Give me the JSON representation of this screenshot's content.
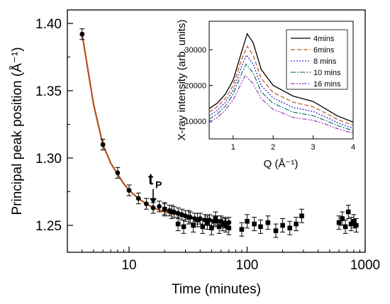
{
  "chart_data": [
    {
      "type": "scatter",
      "xlabel": "Time (minutes)",
      "ylabel": "Principal peak position (Å⁻¹)",
      "xscale": "log",
      "xlim": [
        3,
        1000
      ],
      "ylim": [
        1.23,
        1.41
      ],
      "x_ticks": [
        {
          "value": 10,
          "label": "10"
        },
        {
          "value": 100,
          "label": "100"
        },
        {
          "value": 1000,
          "label": "1000"
        }
      ],
      "y_ticks": [
        {
          "value": 1.25,
          "label": "1.25"
        },
        {
          "value": 1.3,
          "label": "1.30"
        },
        {
          "value": 1.35,
          "label": "1.35"
        },
        {
          "value": 1.4,
          "label": "1.40"
        }
      ],
      "annotation": {
        "text": "t",
        "subscript": "P",
        "x": 16,
        "arrow_from_y": 1.277,
        "arrow_to_y": 1.266
      },
      "series": [
        {
          "marker": "circle",
          "color": "#000000",
          "error_bar": 0.004,
          "points": [
            [
              4,
              1.392
            ],
            [
              6,
              1.31
            ],
            [
              8,
              1.289
            ],
            [
              10,
              1.276
            ],
            [
              12,
              1.27
            ],
            [
              14,
              1.266
            ],
            [
              16,
              1.263
            ],
            [
              18,
              1.264
            ],
            [
              20,
              1.262
            ],
            [
              22,
              1.261
            ],
            [
              24,
              1.26
            ],
            [
              26,
              1.259
            ],
            [
              28,
              1.258
            ],
            [
              30,
              1.257
            ],
            [
              33,
              1.256
            ],
            [
              36,
              1.255
            ],
            [
              40,
              1.255
            ],
            [
              44,
              1.254
            ],
            [
              48,
              1.254
            ],
            [
              52,
              1.253
            ],
            [
              56,
              1.253
            ],
            [
              60,
              1.253
            ],
            [
              65,
              1.252
            ],
            [
              70,
              1.252
            ]
          ]
        },
        {
          "marker": "square",
          "color": "#000000",
          "error_bar": 0.005,
          "points": [
            [
              20,
              1.262
            ],
            [
              23,
              1.26
            ],
            [
              26,
              1.251
            ],
            [
              29,
              1.249
            ],
            [
              32,
              1.256
            ],
            [
              35,
              1.25
            ],
            [
              38,
              1.254
            ],
            [
              42,
              1.249
            ],
            [
              46,
              1.252
            ],
            [
              50,
              1.248
            ],
            [
              54,
              1.255
            ],
            [
              58,
              1.249
            ],
            [
              62,
              1.251
            ],
            [
              66,
              1.25
            ],
            [
              70,
              1.248
            ],
            [
              90,
              1.247
            ],
            [
              100,
              1.253
            ],
            [
              115,
              1.251
            ],
            [
              130,
              1.249
            ],
            [
              150,
              1.252
            ],
            [
              175,
              1.246
            ],
            [
              200,
              1.25
            ],
            [
              230,
              1.248
            ],
            [
              260,
              1.251
            ],
            [
              290,
              1.257
            ],
            [
              600,
              1.252
            ],
            [
              640,
              1.255
            ],
            [
              680,
              1.249
            ],
            [
              720,
              1.26
            ],
            [
              760,
              1.251
            ],
            [
              800,
              1.253
            ],
            [
              840,
              1.25
            ]
          ]
        }
      ],
      "fit_line": {
        "color": "#b44f1e",
        "points": [
          [
            4,
            1.392
          ],
          [
            5,
            1.34
          ],
          [
            6,
            1.31
          ],
          [
            7,
            1.296
          ],
          [
            8,
            1.288
          ],
          [
            9,
            1.281
          ],
          [
            10,
            1.276
          ],
          [
            12,
            1.27
          ],
          [
            14,
            1.266
          ],
          [
            16,
            1.263
          ],
          [
            20,
            1.26
          ],
          [
            25,
            1.258
          ],
          [
            30,
            1.256
          ],
          [
            40,
            1.255
          ],
          [
            50,
            1.254
          ],
          [
            60,
            1.253
          ],
          [
            70,
            1.252
          ]
        ]
      }
    },
    {
      "type": "line",
      "xlabel": "Q (Å⁻¹)",
      "ylabel": "X-ray intensity (arb. units)",
      "xlim": [
        0.4,
        4
      ],
      "ylim": [
        5000,
        38000
      ],
      "x_ticks": [
        {
          "value": 1,
          "label": "1"
        },
        {
          "value": 2,
          "label": "2"
        },
        {
          "value": 3,
          "label": "3"
        },
        {
          "value": 4,
          "label": "4"
        }
      ],
      "y_ticks": [
        {
          "value": 10000,
          "label": "10000"
        },
        {
          "value": 20000,
          "label": "20000"
        },
        {
          "value": 30000,
          "label": "30000"
        }
      ],
      "legend_position": "top-right",
      "series": [
        {
          "name": "4mins",
          "color": "#000000",
          "dash": "solid",
          "points": [
            [
              0.4,
              13500
            ],
            [
              0.6,
              15000
            ],
            [
              0.8,
              17500
            ],
            [
              1.0,
              21500
            ],
            [
              1.2,
              29000
            ],
            [
              1.35,
              34500
            ],
            [
              1.5,
              32000
            ],
            [
              1.7,
              24500
            ],
            [
              2.0,
              20000
            ],
            [
              2.5,
              17000
            ],
            [
              3.0,
              15500
            ],
            [
              3.3,
              13500
            ],
            [
              3.6,
              11500
            ],
            [
              4.0,
              9700
            ]
          ]
        },
        {
          "name": "6mins",
          "color": "#c05f2a",
          "dash": "6,3",
          "points": [
            [
              0.4,
              12500
            ],
            [
              0.6,
              14000
            ],
            [
              0.8,
              16300
            ],
            [
              1.0,
              20000
            ],
            [
              1.2,
              27000
            ],
            [
              1.35,
              31000
            ],
            [
              1.5,
              28500
            ],
            [
              1.7,
              22000
            ],
            [
              2.0,
              18000
            ],
            [
              2.5,
              15300
            ],
            [
              3.0,
              14000
            ],
            [
              3.3,
              12300
            ],
            [
              3.6,
              10500
            ],
            [
              4.0,
              8800
            ]
          ]
        },
        {
          "name": "8 mins",
          "color": "#2a2fbf",
          "dash": "2,2",
          "points": [
            [
              0.4,
              11500
            ],
            [
              0.6,
              13000
            ],
            [
              0.8,
              15200
            ],
            [
              1.0,
              18700
            ],
            [
              1.2,
              25000
            ],
            [
              1.33,
              28500
            ],
            [
              1.5,
              26000
            ],
            [
              1.7,
              20000
            ],
            [
              2.0,
              16500
            ],
            [
              2.5,
              13800
            ],
            [
              3.0,
              12700
            ],
            [
              3.3,
              11200
            ],
            [
              3.6,
              9600
            ],
            [
              4.0,
              8000
            ]
          ]
        },
        {
          "name": "10 mins",
          "color": "#2a7a7a",
          "dash": "7,2,2,2",
          "points": [
            [
              0.4,
              10500
            ],
            [
              0.6,
              12000
            ],
            [
              0.8,
              14100
            ],
            [
              1.0,
              17500
            ],
            [
              1.2,
              23000
            ],
            [
              1.32,
              26000
            ],
            [
              1.5,
              23500
            ],
            [
              1.7,
              18200
            ],
            [
              2.0,
              15000
            ],
            [
              2.5,
              12500
            ],
            [
              3.0,
              11500
            ],
            [
              3.3,
              10200
            ],
            [
              3.6,
              8800
            ],
            [
              4.0,
              7300
            ]
          ]
        },
        {
          "name": "16 mins",
          "color": "#a040c0",
          "dash": "6,2,2,2,2,2",
          "points": [
            [
              0.4,
              9500
            ],
            [
              0.6,
              11000
            ],
            [
              0.8,
              13000
            ],
            [
              1.0,
              16000
            ],
            [
              1.2,
              20500
            ],
            [
              1.3,
              22800
            ],
            [
              1.5,
              20500
            ],
            [
              1.7,
              16300
            ],
            [
              2.0,
              13300
            ],
            [
              2.5,
              11000
            ],
            [
              3.0,
              10200
            ],
            [
              3.3,
              9200
            ],
            [
              3.6,
              7900
            ],
            [
              4.0,
              6600
            ]
          ]
        }
      ]
    }
  ]
}
